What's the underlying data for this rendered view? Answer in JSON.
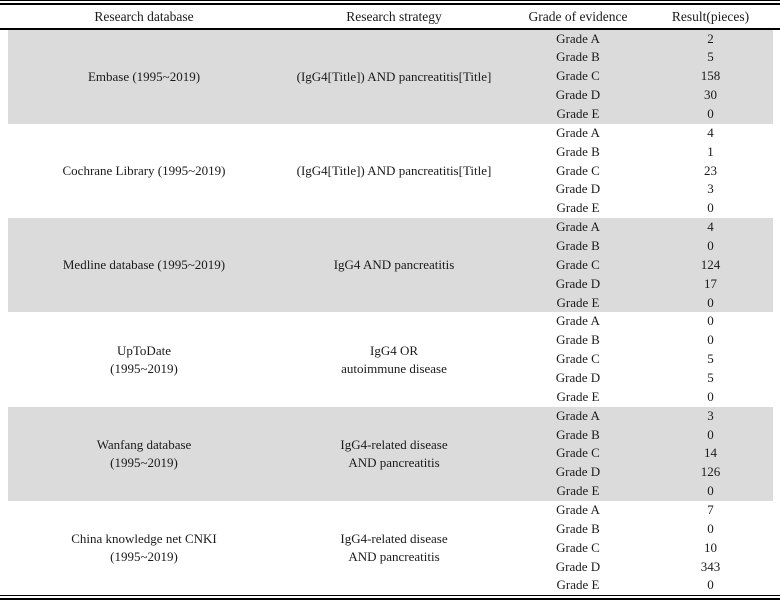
{
  "table": {
    "columns": {
      "database": "Research database",
      "strategy": "Research strategy",
      "grade": "Grade of evidence",
      "result": "Result(pieces)"
    },
    "colors": {
      "band": "#dbdbdb",
      "rule": "#000000",
      "text": "#1a1a1a"
    },
    "groups": [
      {
        "database_lines": [
          "Embase (1995~2019)"
        ],
        "strategy_lines": [
          "(IgG4[Title]) AND pancreatitis[Title]"
        ],
        "rows": [
          {
            "grade": "Grade A",
            "result": "2"
          },
          {
            "grade": "Grade B",
            "result": "5"
          },
          {
            "grade": "Grade C",
            "result": "158"
          },
          {
            "grade": "Grade D",
            "result": "30"
          },
          {
            "grade": "Grade E",
            "result": "0"
          }
        ]
      },
      {
        "database_lines": [
          "Cochrane Library (1995~2019)"
        ],
        "strategy_lines": [
          "(IgG4[Title]) AND pancreatitis[Title]"
        ],
        "rows": [
          {
            "grade": "Grade A",
            "result": "4"
          },
          {
            "grade": "Grade B",
            "result": "1"
          },
          {
            "grade": "Grade C",
            "result": "23"
          },
          {
            "grade": "Grade D",
            "result": "3"
          },
          {
            "grade": "Grade E",
            "result": "0"
          }
        ]
      },
      {
        "database_lines": [
          "Medline database (1995~2019)"
        ],
        "strategy_lines": [
          "IgG4 AND pancreatitis"
        ],
        "rows": [
          {
            "grade": "Grade A",
            "result": "4"
          },
          {
            "grade": "Grade B",
            "result": "0"
          },
          {
            "grade": "Grade C",
            "result": "124"
          },
          {
            "grade": "Grade D",
            "result": "17"
          },
          {
            "grade": "Grade E",
            "result": "0"
          }
        ]
      },
      {
        "database_lines": [
          "UpToDate",
          "(1995~2019)"
        ],
        "strategy_lines": [
          "IgG4 OR",
          "autoimmune disease"
        ],
        "rows": [
          {
            "grade": "Grade A",
            "result": "0"
          },
          {
            "grade": "Grade B",
            "result": "0"
          },
          {
            "grade": "Grade C",
            "result": "5"
          },
          {
            "grade": "Grade D",
            "result": "5"
          },
          {
            "grade": "Grade E",
            "result": "0"
          }
        ]
      },
      {
        "database_lines": [
          "Wanfang database",
          "(1995~2019)"
        ],
        "strategy_lines": [
          "IgG4-related disease",
          "AND pancreatitis"
        ],
        "rows": [
          {
            "grade": "Grade A",
            "result": "3"
          },
          {
            "grade": "Grade B",
            "result": "0"
          },
          {
            "grade": "Grade C",
            "result": "14"
          },
          {
            "grade": "Grade D",
            "result": "126"
          },
          {
            "grade": "Grade E",
            "result": "0"
          }
        ]
      },
      {
        "database_lines": [
          "China knowledge net CNKI",
          "(1995~2019)"
        ],
        "strategy_lines": [
          "IgG4-related disease",
          "AND pancreatitis"
        ],
        "rows": [
          {
            "grade": "Grade A",
            "result": "7"
          },
          {
            "grade": "Grade B",
            "result": "0"
          },
          {
            "grade": "Grade C",
            "result": "10"
          },
          {
            "grade": "Grade D",
            "result": "343"
          },
          {
            "grade": "Grade E",
            "result": "0"
          }
        ]
      }
    ]
  }
}
